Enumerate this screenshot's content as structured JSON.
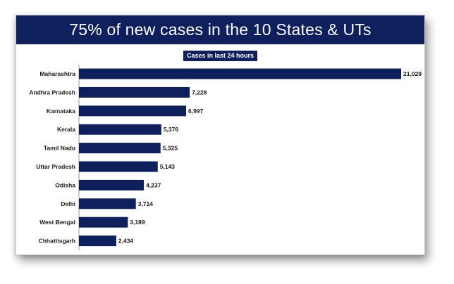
{
  "colors": {
    "banner": "#0d1f5c",
    "bar": "#0d1f5c",
    "text": "#1a1a1a"
  },
  "chart_data": {
    "type": "bar",
    "orientation": "horizontal",
    "title": "75% of new cases in the 10 States & UTs",
    "subtitle": "Cases in last 24 hours",
    "categories": [
      "Maharashtra",
      "Andhra Pradesh",
      "Karnataka",
      "Kerala",
      "Tamil Nadu",
      "Uttar Pradesh",
      "Odisha",
      "Delhi",
      "West Bengal",
      "Chhattisgarh"
    ],
    "values": [
      21029,
      7228,
      6997,
      5376,
      5325,
      5143,
      4237,
      3714,
      3189,
      2434
    ],
    "data_labels": [
      "21,029",
      "7,228",
      "6,997",
      "5,376",
      "5,325",
      "5,143",
      "4,237",
      "3,714",
      "3,189",
      "2,434"
    ],
    "grid": false,
    "legend": "none"
  }
}
